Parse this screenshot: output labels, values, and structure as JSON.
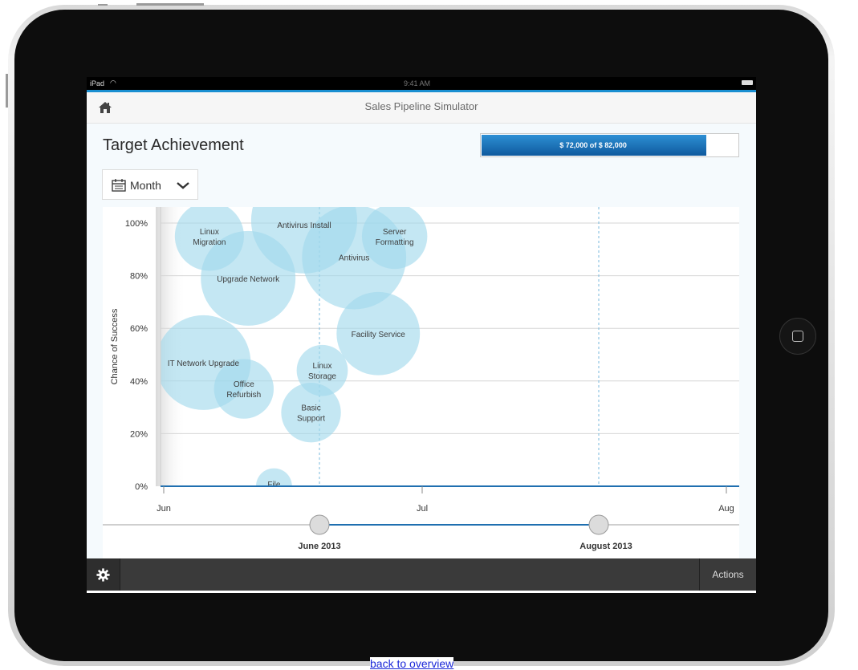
{
  "status_bar": {
    "carrier": "iPad",
    "time": "9:41 AM"
  },
  "header": {
    "title": "Sales Pipeline Simulator"
  },
  "target": {
    "title": "Target Achievement",
    "progress_text": "$ 72,000 of $ 82,000",
    "achieved": 72000,
    "goal": 82000
  },
  "period_select": {
    "selected": "Month"
  },
  "chart_data": {
    "type": "scatter",
    "ylabel": "Chance of Success",
    "ylim": [
      0,
      100
    ],
    "y_ticks": [
      "0%",
      "20%",
      "40%",
      "60%",
      "80%",
      "100%"
    ],
    "x_ticks": [
      "Jun",
      "Jul",
      "Aug"
    ],
    "grid": true,
    "bubbles": [
      {
        "label": "Linux Migration",
        "day": 5.3,
        "y": 95,
        "size": 0.73
      },
      {
        "label": "Upgrade Network",
        "day": 9.8,
        "y": 79,
        "size": 1.0
      },
      {
        "label": "Antivirus Install",
        "day": 16.3,
        "y": 101,
        "size": 1.12
      },
      {
        "label": "Antivirus",
        "day": 22.1,
        "y": 87,
        "size": 1.1
      },
      {
        "label": "Server Formatting",
        "day": 26.8,
        "y": 95,
        "size": 0.69
      },
      {
        "label": "Facility Service",
        "day": 24.9,
        "y": 58,
        "size": 0.88
      },
      {
        "label": "IT Network Upgrade",
        "day": 4.6,
        "y": 47,
        "size": 1.0
      },
      {
        "label": "Office Refurbish",
        "day": 9.3,
        "y": 37,
        "size": 0.63
      },
      {
        "label": "Linux Storage",
        "day": 18.4,
        "y": 44,
        "size": 0.54
      },
      {
        "label": "Basic Support",
        "day": 17.1,
        "y": 28,
        "size": 0.63
      },
      {
        "label": "File",
        "day": 12.8,
        "y": 0,
        "size": 0.38
      }
    ]
  },
  "range_slider": {
    "start_label": "June 2013",
    "end_label": "August 2013"
  },
  "bottom_bar": {
    "actions_label": "Actions"
  },
  "footer": {
    "back_link": "back to overview"
  },
  "colors": {
    "accent": "#1a8fd1",
    "bubble": "#9fd8ec",
    "axis": "#1f6fb0"
  },
  "icons": [
    "home-icon",
    "calendar-icon",
    "chevron-down-icon",
    "gear-icon",
    "wifi-icon",
    "battery-icon"
  ]
}
